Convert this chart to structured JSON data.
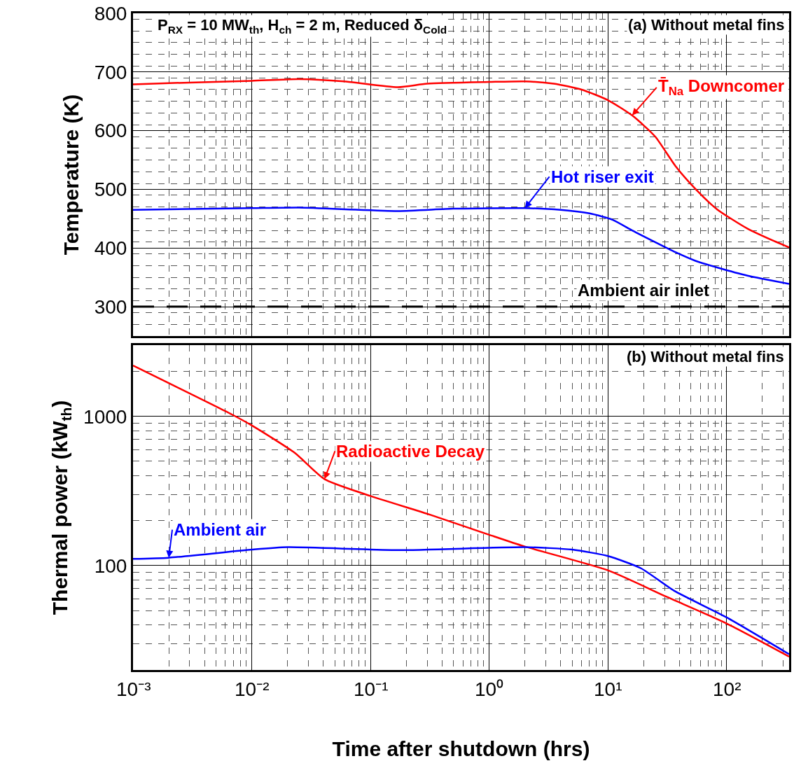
{
  "chart_data": [
    {
      "type": "line",
      "ylabel": "Temperature (K)",
      "xlim": [
        0.001,
        336
      ],
      "ylim": [
        250,
        800
      ],
      "yticks": [
        300,
        400,
        500,
        600,
        700,
        800
      ],
      "log": "x",
      "grid": true,
      "legend": false,
      "tick_labels": "y",
      "xticks": [
        {
          "value": 0.001,
          "label": null
        },
        {
          "value": 0.01,
          "label": null
        },
        {
          "value": 0.1,
          "label": null
        },
        {
          "value": 1,
          "label": null
        },
        {
          "value": 10,
          "label": null
        },
        {
          "value": 100,
          "label": null
        }
      ],
      "annotations": [
        "P$_{RX}$ = 10 MW$_{th}$, H$_{ch}$ = 2 m, Reduced δ$_{Cold}$",
        "(a) Without metal fins"
      ],
      "ref_lines": [
        {
          "axis": "y",
          "value": 300,
          "label": "Ambient air inlet",
          "color": "#000000",
          "line_style": "dashed"
        }
      ],
      "series": [
        {
          "name": "T̄$_{Na}$ Downcomer",
          "color": "#ff0000",
          "x": [
            0.001,
            0.003,
            0.01,
            0.025,
            0.06,
            0.17,
            0.3,
            1,
            2,
            3.5,
            6,
            10,
            16,
            25,
            37,
            55,
            83,
            150,
            250,
            336
          ],
          "values": [
            679,
            682,
            685,
            688,
            684,
            674,
            680,
            683,
            684,
            680,
            670,
            652,
            626,
            590,
            540,
            500,
            466,
            433,
            412,
            401
          ]
        },
        {
          "name": "Hot riser exit",
          "color": "#0000ff",
          "x": [
            0.001,
            0.01,
            0.025,
            0.17,
            0.5,
            2,
            4,
            7,
            11,
            16,
            25,
            37,
            55,
            83,
            150,
            336
          ],
          "values": [
            465,
            468,
            469,
            463,
            467,
            468,
            465,
            459,
            448,
            430,
            410,
            393,
            378,
            367,
            353,
            339
          ]
        }
      ]
    },
    {
      "type": "line",
      "ylabel": "Thermal power (kW$_{th}$)",
      "xlabel": "Time after shutdown (hrs)",
      "xlim": [
        0.001,
        336
      ],
      "ylim": [
        20,
        3000
      ],
      "yticks": [
        100,
        1000
      ],
      "log": "xy",
      "grid": true,
      "legend": false,
      "xticks": [
        {
          "value": 0.001,
          "label": "10⁻³"
        },
        {
          "value": 0.01,
          "label": "10⁻²"
        },
        {
          "value": 0.1,
          "label": "10⁻¹"
        },
        {
          "value": 1,
          "label": "10⁰"
        },
        {
          "value": 10,
          "label": "10¹"
        },
        {
          "value": 100,
          "label": "10²"
        }
      ],
      "annotations": [
        "(b) Without metal fins"
      ],
      "series": [
        {
          "name": "Radioactive Decay",
          "color": "#ff0000",
          "x": [
            0.001,
            0.0068,
            0.01,
            0.023,
            0.041,
            0.1,
            0.32,
            1,
            1.95,
            10,
            31,
            100,
            336
          ],
          "values": [
            2190,
            1030,
            870,
            570,
            380,
            293,
            219,
            161,
            135,
            93,
            62,
            41,
            24.6
          ]
        },
        {
          "name": "Ambient air",
          "color": "#0000ff",
          "x": [
            0.001,
            0.002,
            0.01,
            0.02,
            0.17,
            2,
            5,
            10,
            19,
            36,
            100,
            336
          ],
          "values": [
            111,
            113,
            128,
            133,
            127,
            133,
            128,
            116,
            96,
            68,
            45,
            25.5
          ]
        }
      ]
    }
  ]
}
